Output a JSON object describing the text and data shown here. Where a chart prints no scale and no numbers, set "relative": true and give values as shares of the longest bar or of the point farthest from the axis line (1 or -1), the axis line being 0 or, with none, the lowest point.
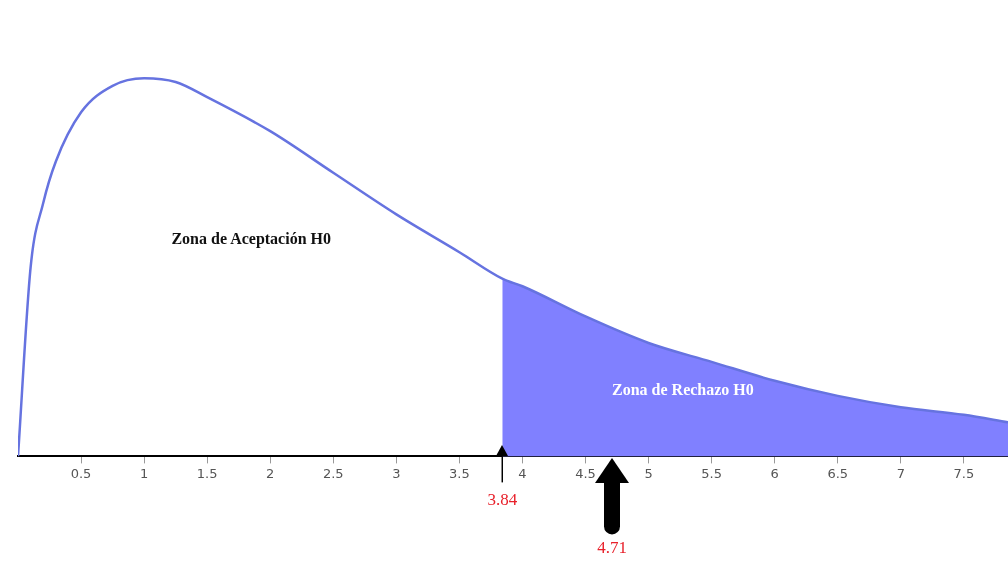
{
  "chart_data": {
    "type": "line",
    "relative": true,
    "xlim": [
      0,
      7.85
    ],
    "xticks": [
      0.5,
      1,
      1.5,
      2,
      2.5,
      3,
      3.5,
      4,
      4.5,
      5,
      5.5,
      6,
      6.5,
      7,
      7.5
    ],
    "tick_labels": "x",
    "grid": false,
    "legend": false,
    "marker": "none",
    "series": [
      {
        "type": "area",
        "color": "#8080ff",
        "x": [
          3.84,
          4,
          4.5,
          5,
          5.5,
          6,
          6.5,
          7,
          7.5,
          7.85
        ],
        "values": [
          0.47,
          0.45,
          0.37,
          0.3,
          0.25,
          0.2,
          0.16,
          0.13,
          0.11,
          0.09
        ]
      },
      {
        "type": "line",
        "color": "#6673e0",
        "x": [
          0,
          0.1,
          0.2,
          0.3,
          0.5,
          0.75,
          1,
          1.25,
          1.5,
          2,
          2.5,
          3,
          3.5,
          3.84,
          4,
          4.5,
          5,
          5.5,
          6,
          6.5,
          7,
          7.5,
          7.85
        ],
        "values": [
          0,
          0.5,
          0.67,
          0.78,
          0.91,
          0.98,
          1,
          0.99,
          0.95,
          0.86,
          0.75,
          0.64,
          0.54,
          0.47,
          0.45,
          0.37,
          0.3,
          0.25,
          0.2,
          0.16,
          0.13,
          0.11,
          0.09
        ]
      }
    ],
    "ref_lines": [
      {
        "axis": "x",
        "value": 3.84,
        "label": "3.84",
        "color": "#000000"
      },
      {
        "axis": "x",
        "value": 4.71,
        "label": "4.71",
        "color": "#000000"
      }
    ],
    "annotations": [
      "Zona de Aceptación H0",
      "Zona de Rechazo H0"
    ]
  }
}
